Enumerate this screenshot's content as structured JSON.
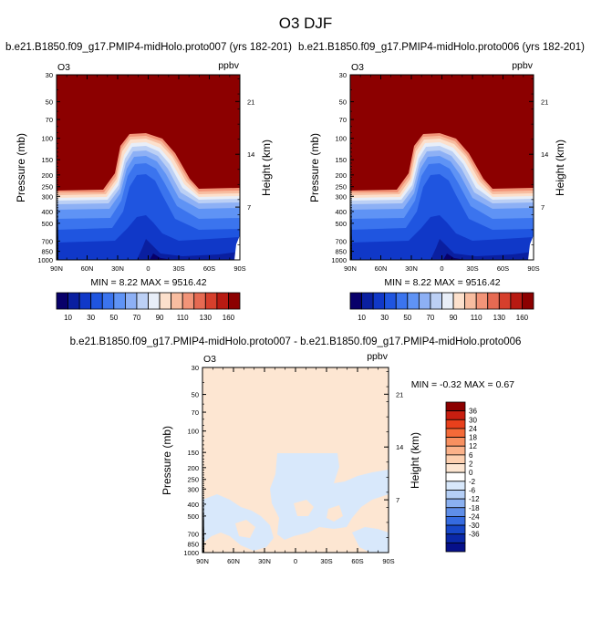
{
  "figure": {
    "title": "O3 DJF"
  },
  "chart_data": [
    {
      "type": "heatmap",
      "subplot": "left",
      "title": "b.e21.B1850.f09_g17.PMIP4-midHolo.proto007 (yrs 182-201)",
      "left_string": "O3",
      "right_string": "ppbv",
      "xlabel": "",
      "ylabel": "Pressure (mb)",
      "ylabel_right": "Height (km)",
      "x_ticks": [
        "90N",
        "60N",
        "30N",
        "0",
        "30S",
        "60S",
        "90S"
      ],
      "x_tick_values": [
        90,
        60,
        30,
        0,
        -30,
        -60,
        -90
      ],
      "y_ticks": [
        "30",
        "50",
        "70",
        "100",
        "150",
        "200",
        "250",
        "300",
        "400",
        "500",
        "700",
        "850",
        "1000"
      ],
      "y_tick_values": [
        30,
        50,
        70,
        100,
        150,
        200,
        250,
        300,
        400,
        500,
        700,
        850,
        1000
      ],
      "y_scale": "log",
      "y_right_ticks": [
        "21",
        "14",
        "7"
      ],
      "y_right_tick_values": [
        21,
        14,
        7
      ],
      "ylim": [
        1000,
        30
      ],
      "min_max_text": "MIN =   8.22  MAX = 9516.42",
      "colorbar": {
        "orientation": "horizontal",
        "labels": [
          "10",
          "30",
          "50",
          "70",
          "90",
          "110",
          "130",
          "160"
        ],
        "levels": [
          10,
          20,
          30,
          40,
          50,
          60,
          70,
          80,
          90,
          100,
          110,
          120,
          130,
          140,
          150,
          160
        ],
        "colors": [
          "#08006a",
          "#0a1fa0",
          "#1038c8",
          "#1f55e0",
          "#3b74ee",
          "#5f93f5",
          "#8db0f5",
          "#bcd0f5",
          "#e8eef8",
          "#fce0cc",
          "#f8bda0",
          "#f29478",
          "#e66a52",
          "#d63f2c",
          "#b81a12",
          "#8c0000"
        ]
      }
    },
    {
      "type": "heatmap",
      "subplot": "right",
      "title": "b.e21.B1850.f09_g17.PMIP4-midHolo.proto006 (yrs 182-201)",
      "left_string": "O3",
      "right_string": "ppbv",
      "xlabel": "",
      "ylabel": "Pressure (mb)",
      "ylabel_right": "Height (km)",
      "x_ticks": [
        "90N",
        "60N",
        "30N",
        "0",
        "30S",
        "60S",
        "90S"
      ],
      "x_tick_values": [
        90,
        60,
        30,
        0,
        -30,
        -60,
        -90
      ],
      "y_ticks": [
        "30",
        "50",
        "70",
        "100",
        "150",
        "200",
        "250",
        "300",
        "400",
        "500",
        "700",
        "850",
        "1000"
      ],
      "y_tick_values": [
        30,
        50,
        70,
        100,
        150,
        200,
        250,
        300,
        400,
        500,
        700,
        850,
        1000
      ],
      "y_scale": "log",
      "y_right_ticks": [
        "21",
        "14",
        "7"
      ],
      "y_right_tick_values": [
        21,
        14,
        7
      ],
      "ylim": [
        1000,
        30
      ],
      "min_max_text": "MIN =   8.22  MAX = 9516.42",
      "colorbar": {
        "orientation": "horizontal",
        "labels": [
          "10",
          "30",
          "50",
          "70",
          "90",
          "110",
          "130",
          "160"
        ],
        "levels": [
          10,
          20,
          30,
          40,
          50,
          60,
          70,
          80,
          90,
          100,
          110,
          120,
          130,
          140,
          150,
          160
        ],
        "colors": [
          "#08006a",
          "#0a1fa0",
          "#1038c8",
          "#1f55e0",
          "#3b74ee",
          "#5f93f5",
          "#8db0f5",
          "#bcd0f5",
          "#e8eef8",
          "#fce0cc",
          "#f8bda0",
          "#f29478",
          "#e66a52",
          "#d63f2c",
          "#b81a12",
          "#8c0000"
        ]
      }
    },
    {
      "type": "heatmap",
      "subplot": "difference",
      "title": "b.e21.B1850.f09_g17.PMIP4-midHolo.proto007 - b.e21.B1850.f09_g17.PMIP4-midHolo.proto006",
      "left_string": "O3",
      "right_string": "ppbv",
      "xlabel": "",
      "ylabel": "Pressure (mb)",
      "ylabel_right": "Height (km)",
      "x_ticks": [
        "90N",
        "60N",
        "30N",
        "0",
        "30S",
        "60S",
        "90S"
      ],
      "x_tick_values": [
        90,
        60,
        30,
        0,
        -30,
        -60,
        -90
      ],
      "y_ticks": [
        "30",
        "50",
        "70",
        "100",
        "150",
        "200",
        "250",
        "300",
        "400",
        "500",
        "700",
        "850",
        "1000"
      ],
      "y_tick_values": [
        30,
        50,
        70,
        100,
        150,
        200,
        250,
        300,
        400,
        500,
        700,
        850,
        1000
      ],
      "y_scale": "log",
      "y_right_ticks": [
        "21",
        "14",
        "7"
      ],
      "y_right_tick_values": [
        21,
        14,
        7
      ],
      "ylim": [
        1000,
        30
      ],
      "min_max_text": "MIN =  -0.32  MAX =   0.67",
      "colorbar": {
        "orientation": "vertical",
        "labels": [
          "36",
          "30",
          "24",
          "18",
          "12",
          "6",
          "2",
          "0",
          "-2",
          "-6",
          "-12",
          "-18",
          "-24",
          "-30",
          "-36"
        ],
        "colors": [
          "#8c0000",
          "#c81e10",
          "#e8401c",
          "#f46a38",
          "#f89060",
          "#fbb28a",
          "#fdd0b0",
          "#fde6d2",
          "#ffffff",
          "#d8e8fb",
          "#b5cff6",
          "#8ab0f0",
          "#5f8ee8",
          "#356be0",
          "#1747c8",
          "#0a28a8",
          "#06108a"
        ]
      }
    }
  ]
}
